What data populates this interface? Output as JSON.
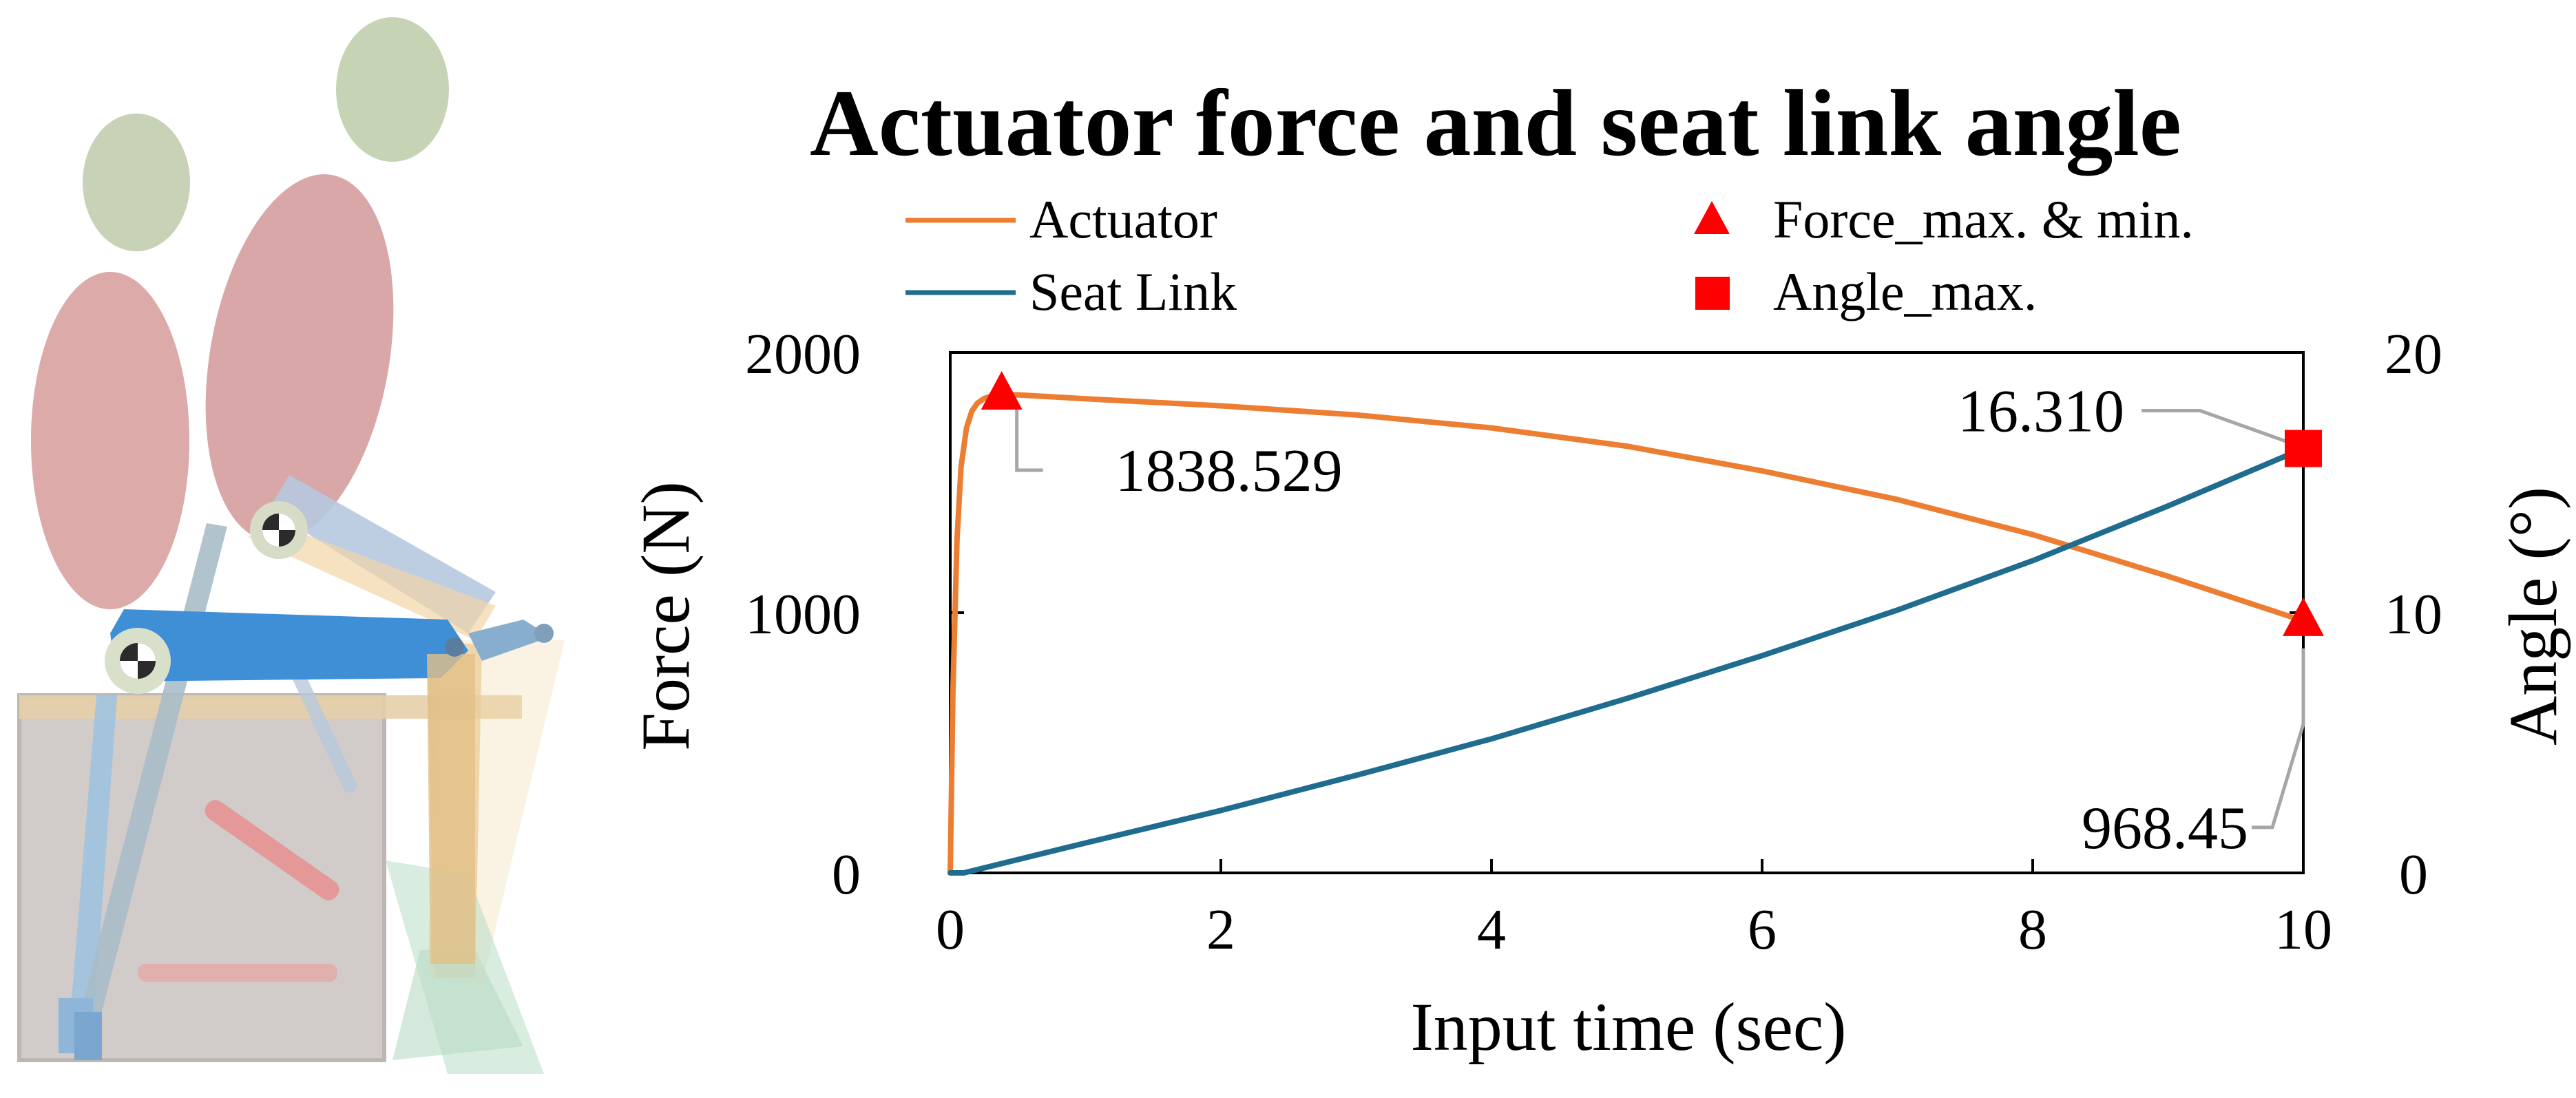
{
  "chart_data": {
    "type": "line",
    "title": "Actuator force and seat link angle",
    "xlabel": "Input time (sec)",
    "ylabel_left": "Force (N)",
    "ylabel_right": "Angle (°)",
    "xlim": [
      0,
      10
    ],
    "ylim_left": [
      0,
      2000
    ],
    "ylim_right": [
      0,
      20
    ],
    "x_ticks": [
      "0",
      "2",
      "4",
      "6",
      "8",
      "10"
    ],
    "y_left_ticks": [
      "0",
      "1000",
      "2000"
    ],
    "y_right_ticks": [
      "0",
      "10",
      "20"
    ],
    "grid": false,
    "legend_placement": "top",
    "legend": [
      {
        "label": "Actuator",
        "symbol": "line",
        "color": "#ed7d31"
      },
      {
        "label": "Seat Link",
        "symbol": "line",
        "color": "#1f6c8f"
      },
      {
        "label": "Force_max. & min.",
        "symbol": "triangle",
        "color": "#ff0000"
      },
      {
        "label": "Angle_max.",
        "symbol": "square",
        "color": "#ff0000"
      }
    ],
    "series": [
      {
        "name": "Actuator",
        "axis": "left",
        "color": "#ed7d31",
        "x": [
          0,
          0.02,
          0.05,
          0.08,
          0.12,
          0.16,
          0.2,
          0.25,
          0.3,
          0.38,
          0.5,
          1,
          2,
          3,
          4,
          5,
          6,
          7,
          8,
          9,
          10
        ],
        "y": [
          0,
          700,
          1280,
          1560,
          1710,
          1775,
          1805,
          1823,
          1832,
          1838.529,
          1837,
          1822,
          1795,
          1760,
          1710,
          1640,
          1545,
          1435,
          1300,
          1140,
          968.45
        ]
      },
      {
        "name": "Seat Link",
        "axis": "right",
        "color": "#1f6c8f",
        "x": [
          0,
          0.1,
          1,
          2,
          3,
          4,
          5,
          6,
          7,
          8,
          9,
          10
        ],
        "y": [
          0,
          0,
          1.15,
          2.4,
          3.75,
          5.15,
          6.7,
          8.35,
          10.1,
          12.0,
          14.1,
          16.31
        ]
      }
    ],
    "markers": [
      {
        "kind": "triangle",
        "label": "1838.529",
        "axis": "left",
        "x": 0.38,
        "y": 1838.529
      },
      {
        "kind": "triangle",
        "label": "968.45",
        "axis": "left",
        "x": 10,
        "y": 968.45
      },
      {
        "kind": "square",
        "label": "16.310",
        "axis": "right",
        "x": 10,
        "y": 16.31
      }
    ],
    "marker_color": "#ff0000",
    "leader_color": "#a6a6a6"
  }
}
